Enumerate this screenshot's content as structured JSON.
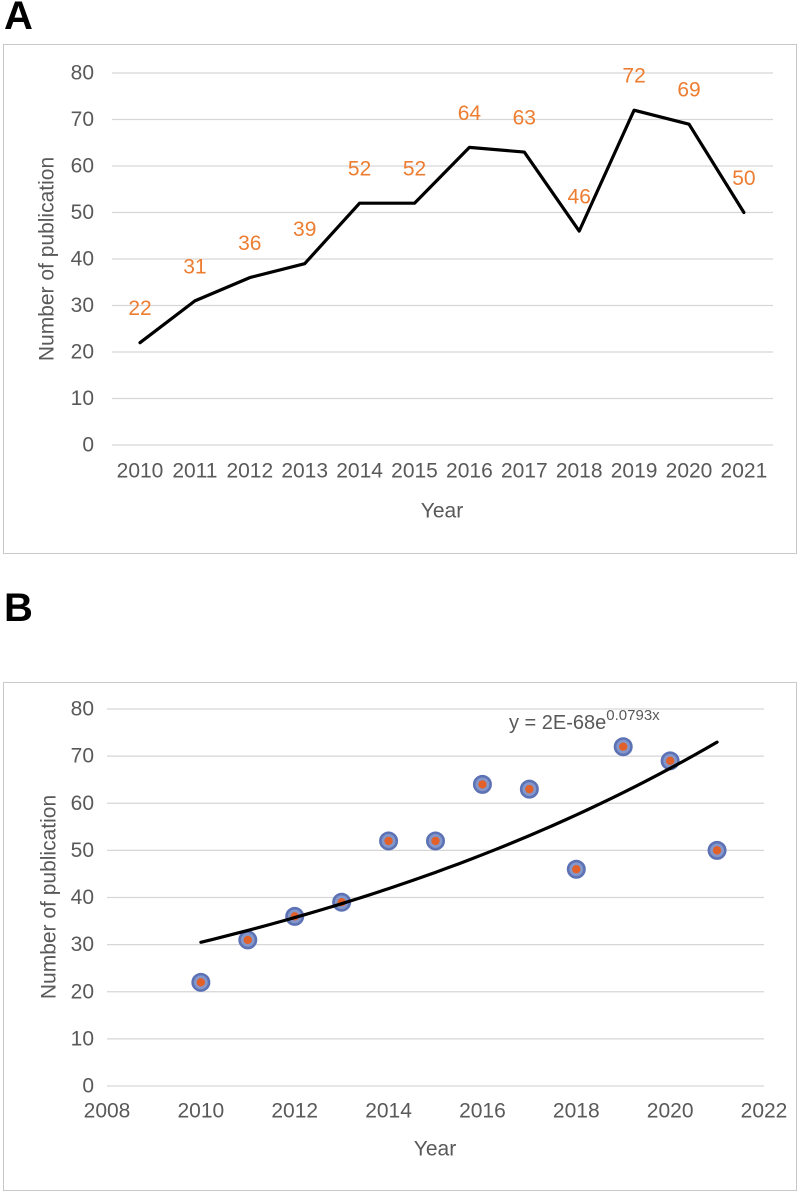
{
  "figure": {
    "background": "#FFFFFF"
  },
  "panels": [
    {
      "label": "A"
    },
    {
      "label": "B"
    }
  ],
  "chart_data": [
    {
      "type": "line",
      "title": "",
      "xlabel": "Year",
      "ylabel": "Number of publication",
      "categories": [
        "2010",
        "2011",
        "2012",
        "2013",
        "2014",
        "2015",
        "2016",
        "2017",
        "2018",
        "2019",
        "2020",
        "2021"
      ],
      "values": [
        22,
        31,
        36,
        39,
        52,
        52,
        64,
        63,
        46,
        72,
        69,
        50
      ],
      "data_labels": [
        "22",
        "31",
        "36",
        "39",
        "52",
        "52",
        "64",
        "63",
        "46",
        "72",
        "69",
        "50"
      ],
      "ylim": [
        0,
        80
      ],
      "yticks": [
        0,
        10,
        20,
        30,
        40,
        50,
        60,
        70,
        80
      ],
      "grid": true,
      "legend": "none",
      "line_color": "#000000",
      "data_label_color": "#ED7D31",
      "axis_text_color": "#595959",
      "gridline_color": "#D6D6D6"
    },
    {
      "type": "scatter",
      "title": "",
      "xlabel": "Year",
      "ylabel": "Number of publication",
      "x": [
        2010,
        2011,
        2012,
        2013,
        2014,
        2015,
        2016,
        2017,
        2018,
        2019,
        2020,
        2021
      ],
      "y": [
        22,
        31,
        36,
        39,
        52,
        52,
        64,
        63,
        46,
        72,
        69,
        50
      ],
      "xlim": [
        2008,
        2022
      ],
      "ylim": [
        0,
        80
      ],
      "xticks": [
        2008,
        2010,
        2012,
        2014,
        2016,
        2018,
        2020,
        2022
      ],
      "yticks": [
        0,
        10,
        20,
        30,
        40,
        50,
        60,
        70,
        80
      ],
      "grid": true,
      "legend": "none",
      "marker_fill": "#8497CB",
      "marker_ring": "#5C72B5",
      "marker_center": "#E2612B",
      "axis_text_color": "#595959",
      "gridline_color": "#D6D6D6",
      "trendline": {
        "equation_base": "y = 2E-68e",
        "equation_exponent": "0.0793x",
        "color": "#000000",
        "x_start": 2010,
        "x_end": 2021,
        "value_at_start": 30.5,
        "growth_rate": 0.0793
      }
    }
  ]
}
